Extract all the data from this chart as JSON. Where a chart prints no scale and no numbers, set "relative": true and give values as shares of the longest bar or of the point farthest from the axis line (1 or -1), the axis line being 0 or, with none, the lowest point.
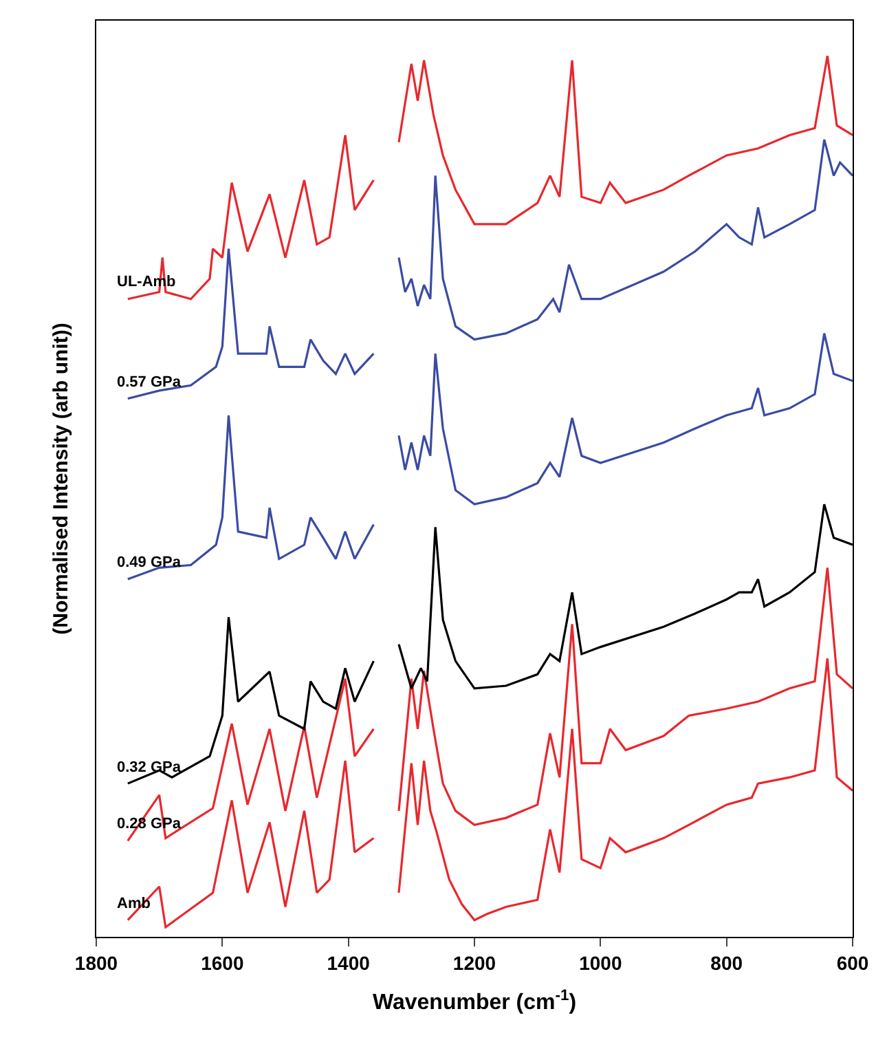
{
  "chart_data": {
    "type": "line",
    "relative": true,
    "xlabel": "Wavenumber (cm$^{-1}$)",
    "ylabel": "(Normalised Intensity (arb unit))",
    "xlim": [
      1800,
      600
    ],
    "xticks": [
      1800,
      1600,
      1400,
      1200,
      1000,
      800,
      600
    ],
    "legend": false,
    "tick_labels": "x",
    "marker": "none",
    "line_style": "solid",
    "series": [
      {
        "name": "Amb",
        "color": "#e8282d",
        "x": [
          1750,
          1700,
          1690,
          1615,
          1585,
          1560,
          1525,
          1500,
          1470,
          1450,
          1430,
          1405,
          1390,
          1360,
          1340,
          1320,
          1300,
          1290,
          1280,
          1270,
          1260,
          1240,
          1220,
          1200,
          1180,
          1150,
          1100,
          1080,
          1065,
          1045,
          1030,
          1000,
          985,
          960,
          900,
          860,
          800,
          760,
          750,
          700,
          660,
          640,
          625,
          600
        ],
        "values": [
          0.019,
          0.057,
          0.011,
          0.05,
          0.155,
          0.05,
          0.13,
          0.034,
          0.143,
          0.05,
          0.065,
          0.2,
          0.096,
          0.112,
          null,
          0.05,
          0.197,
          0.127,
          0.2,
          0.143,
          0.119,
          0.065,
          0.037,
          0.019,
          0.026,
          0.034,
          0.042,
          0.122,
          0.073,
          0.236,
          0.088,
          0.078,
          0.112,
          0.096,
          0.112,
          0.127,
          0.15,
          0.158,
          0.174,
          0.181,
          0.189,
          0.316,
          0.181,
          0.166
        ]
      },
      {
        "name": "0.28 GPa",
        "color": "#e8282d",
        "x": [
          1750,
          1700,
          1690,
          1615,
          1585,
          1560,
          1525,
          1500,
          1470,
          1450,
          1405,
          1390,
          1360,
          1340,
          1320,
          1300,
          1290,
          1280,
          1265,
          1250,
          1230,
          1200,
          1150,
          1100,
          1080,
          1065,
          1045,
          1030,
          1000,
          985,
          960,
          900,
          860,
          800,
          750,
          700,
          660,
          640,
          625,
          600
        ],
        "values": [
          0.109,
          0.161,
          0.112,
          0.146,
          0.242,
          0.15,
          0.236,
          0.143,
          0.239,
          0.158,
          0.293,
          0.205,
          0.236,
          null,
          0.143,
          0.293,
          0.236,
          0.302,
          0.236,
          0.174,
          0.143,
          0.127,
          0.135,
          0.15,
          0.231,
          0.181,
          0.355,
          0.197,
          0.197,
          0.236,
          0.212,
          0.228,
          0.251,
          0.259,
          0.267,
          0.282,
          0.29,
          0.419,
          0.298,
          0.282
        ]
      },
      {
        "name": "0.32 GPa",
        "color": "#000000",
        "x": [
          1750,
          1700,
          1680,
          1620,
          1600,
          1590,
          1575,
          1525,
          1510,
          1470,
          1460,
          1440,
          1420,
          1405,
          1390,
          1360,
          1340,
          1320,
          1300,
          1285,
          1275,
          1262,
          1250,
          1230,
          1200,
          1150,
          1100,
          1080,
          1065,
          1045,
          1030,
          1000,
          900,
          850,
          800,
          780,
          760,
          750,
          740,
          700,
          660,
          645,
          630,
          600
        ],
        "values": [
          0.174,
          0.189,
          0.181,
          0.205,
          0.251,
          0.363,
          0.267,
          0.301,
          0.251,
          0.236,
          0.29,
          0.267,
          0.259,
          0.305,
          0.267,
          0.313,
          null,
          0.332,
          0.282,
          0.305,
          0.29,
          0.465,
          0.36,
          0.313,
          0.282,
          0.285,
          0.298,
          0.321,
          0.313,
          0.391,
          0.321,
          0.329,
          0.352,
          0.367,
          0.383,
          0.391,
          0.391,
          0.406,
          0.375,
          0.391,
          0.414,
          0.491,
          0.453,
          0.445
        ]
      },
      {
        "name": "0.49 GPa",
        "color": "#3b4ba3",
        "x": [
          1750,
          1700,
          1650,
          1610,
          1600,
          1590,
          1575,
          1530,
          1525,
          1510,
          1470,
          1460,
          1440,
          1420,
          1405,
          1390,
          1360,
          1340,
          1320,
          1310,
          1300,
          1290,
          1280,
          1270,
          1262,
          1250,
          1230,
          1200,
          1150,
          1100,
          1080,
          1065,
          1045,
          1030,
          1000,
          900,
          850,
          800,
          760,
          750,
          740,
          700,
          660,
          645,
          630,
          600
        ],
        "values": [
          0.406,
          0.419,
          0.422,
          0.445,
          0.476,
          0.592,
          0.46,
          0.453,
          0.487,
          0.429,
          0.445,
          0.476,
          0.453,
          0.429,
          0.46,
          0.429,
          0.468,
          null,
          0.569,
          0.53,
          0.561,
          0.53,
          0.569,
          0.546,
          0.662,
          0.577,
          0.507,
          0.491,
          0.499,
          0.515,
          0.538,
          0.522,
          0.589,
          0.546,
          0.538,
          0.561,
          0.577,
          0.592,
          0.6,
          0.623,
          0.592,
          0.6,
          0.616,
          0.685,
          0.639,
          0.631
        ]
      },
      {
        "name": "0.57 GPa",
        "color": "#3b4ba3",
        "x": [
          1750,
          1700,
          1650,
          1610,
          1600,
          1590,
          1575,
          1530,
          1525,
          1510,
          1470,
          1460,
          1440,
          1420,
          1405,
          1390,
          1360,
          1340,
          1320,
          1310,
          1300,
          1290,
          1280,
          1270,
          1262,
          1250,
          1230,
          1200,
          1150,
          1100,
          1075,
          1065,
          1050,
          1030,
          1000,
          900,
          850,
          800,
          780,
          760,
          750,
          740,
          700,
          660,
          645,
          630,
          620,
          600
        ],
        "values": [
          0.611,
          0.62,
          0.626,
          0.647,
          0.67,
          0.781,
          0.662,
          0.662,
          0.693,
          0.647,
          0.647,
          0.678,
          0.654,
          0.639,
          0.662,
          0.639,
          0.662,
          null,
          0.771,
          0.732,
          0.747,
          0.716,
          0.74,
          0.724,
          0.864,
          0.747,
          0.693,
          0.678,
          0.685,
          0.701,
          0.724,
          0.709,
          0.763,
          0.724,
          0.724,
          0.755,
          0.778,
          0.809,
          0.794,
          0.786,
          0.828,
          0.794,
          0.809,
          0.825,
          0.905,
          0.864,
          0.879,
          0.864
        ]
      },
      {
        "name": "UL-Amb",
        "color": "#e8282d",
        "x": [
          1750,
          1700,
          1695,
          1690,
          1650,
          1620,
          1615,
          1600,
          1585,
          1560,
          1525,
          1500,
          1470,
          1450,
          1430,
          1405,
          1390,
          1360,
          1340,
          1320,
          1300,
          1290,
          1280,
          1265,
          1250,
          1230,
          1200,
          1150,
          1100,
          1080,
          1065,
          1045,
          1030,
          1000,
          985,
          960,
          900,
          860,
          800,
          750,
          700,
          660,
          640,
          625,
          600
        ],
        "values": [
          0.724,
          0.732,
          0.771,
          0.732,
          0.724,
          0.747,
          0.781,
          0.771,
          0.856,
          0.778,
          0.843,
          0.771,
          0.859,
          0.786,
          0.794,
          0.91,
          0.825,
          0.859,
          null,
          0.902,
          0.991,
          0.949,
          0.995,
          0.933,
          0.887,
          0.848,
          0.809,
          0.809,
          0.833,
          0.864,
          0.84,
          0.995,
          0.84,
          0.833,
          0.856,
          0.833,
          0.848,
          0.864,
          0.887,
          0.895,
          0.91,
          0.918,
          1,
          0.921,
          0.91
        ]
      }
    ]
  }
}
